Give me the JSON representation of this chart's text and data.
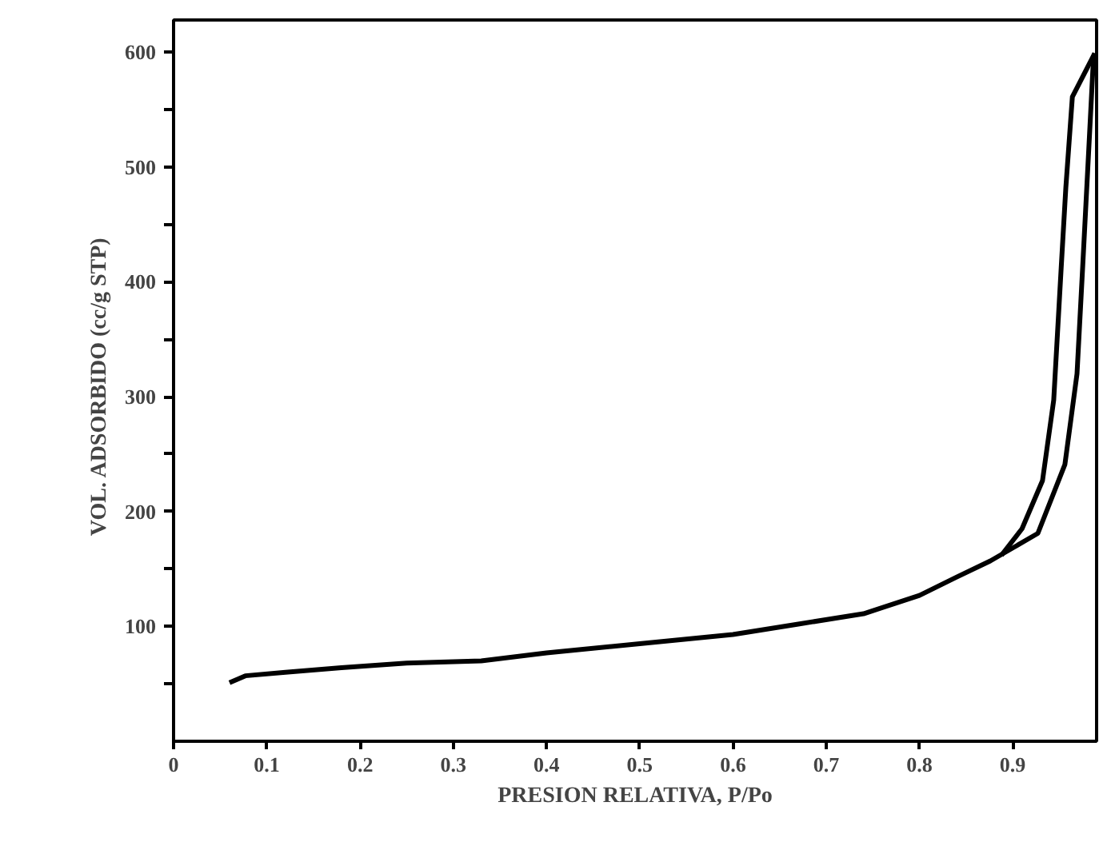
{
  "chart_data": {
    "type": "line",
    "xlabel": "PRESION RELATIVA, P/Po",
    "ylabel": "VOL. ADSORBIDO  (cc/g  STP)",
    "xlim": [
      0,
      0.99
    ],
    "ylim": [
      0,
      628
    ],
    "xticks": [
      0,
      0.1,
      0.2,
      0.3,
      0.4,
      0.5,
      0.6,
      0.7,
      0.8,
      0.9
    ],
    "yticks": [
      {
        "value": 50,
        "label": null
      },
      100,
      {
        "value": 150,
        "label": null
      },
      200,
      {
        "value": 250,
        "label": null
      },
      300,
      {
        "value": 350,
        "label": null
      },
      400,
      {
        "value": 450,
        "label": null
      },
      500,
      {
        "value": 550,
        "label": null
      },
      600
    ],
    "grid": false,
    "marker": "none",
    "line_style": "solid",
    "series": [
      {
        "color": "#000000",
        "x": [
          0.06,
          0.077,
          0.12,
          0.18,
          0.25,
          0.33,
          0.4,
          0.5,
          0.6,
          0.67,
          0.74,
          0.8,
          0.84,
          0.876,
          0.927,
          0.956,
          0.969,
          0.975,
          0.981,
          0.986,
          0.988
        ],
        "values": [
          51,
          57,
          60,
          64,
          68,
          70,
          77,
          85,
          93,
          102,
          111,
          127,
          143,
          157,
          181,
          241,
          320,
          412,
          506,
          585,
          599
        ]
      },
      {
        "color": "#000000",
        "x": [
          0.988,
          0.964,
          0.957,
          0.952,
          0.944,
          0.932,
          0.91,
          0.888
        ],
        "values": [
          599,
          561,
          482,
          412,
          297,
          227,
          185,
          162
        ]
      }
    ]
  }
}
